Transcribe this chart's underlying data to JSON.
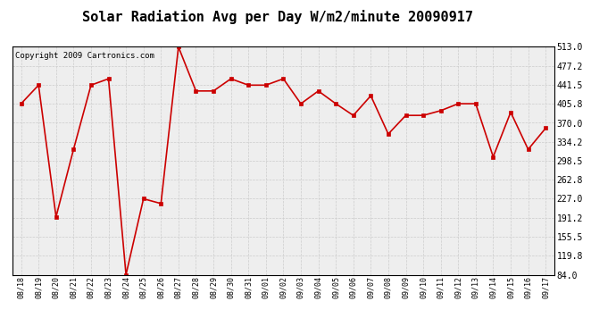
{
  "title": "Solar Radiation Avg per Day W/m2/minute 20090917",
  "copyright": "Copyright 2009 Cartronics.com",
  "dates": [
    "08/18",
    "08/19",
    "08/20",
    "08/21",
    "08/22",
    "08/23",
    "08/24",
    "08/25",
    "08/26",
    "08/27",
    "08/28",
    "08/29",
    "08/30",
    "08/31",
    "09/01",
    "09/02",
    "09/03",
    "09/04",
    "09/05",
    "09/06",
    "09/07",
    "09/08",
    "09/09",
    "09/10",
    "09/11",
    "09/12",
    "09/13",
    "09/14",
    "09/15",
    "09/16",
    "09/17"
  ],
  "values": [
    406,
    441,
    193,
    320,
    441,
    453,
    84,
    227,
    218,
    513,
    430,
    430,
    453,
    441,
    441,
    453,
    406,
    430,
    406,
    384,
    421,
    349,
    384,
    384,
    393,
    406,
    406,
    306,
    390,
    320,
    360
  ],
  "y_ticks": [
    84.0,
    119.8,
    155.5,
    191.2,
    227.0,
    262.8,
    298.5,
    334.2,
    370.0,
    405.8,
    441.5,
    477.2,
    513.0
  ],
  "ymin": 84.0,
  "ymax": 513.0,
  "line_color": "#cc0000",
  "marker_color": "#cc0000",
  "bg_color": "#ffffff",
  "plot_bg_color": "#eeeeee",
  "grid_color": "#cccccc",
  "title_fontsize": 11,
  "copyright_fontsize": 6.5,
  "tick_fontsize": 7,
  "xtick_fontsize": 6
}
